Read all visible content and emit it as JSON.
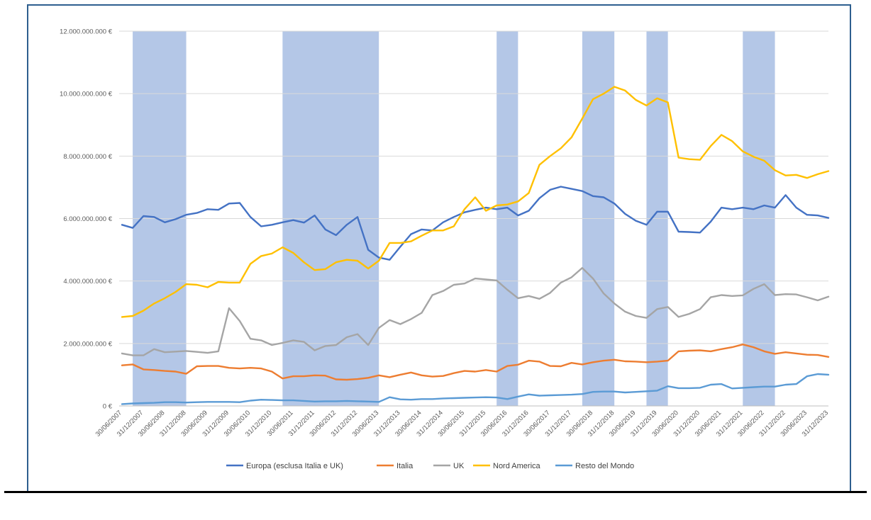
{
  "chart_data": {
    "type": "line",
    "title": "",
    "xlabel": "",
    "ylabel": "",
    "ylim": [
      0,
      12000000000
    ],
    "y_ticks": [
      "0 €",
      "2.000.000.000 €",
      "4.000.000.000 €",
      "6.000.000.000 €",
      "8.000.000.000 €",
      "10.000.000.000 €",
      "12.000.000.000 €"
    ],
    "x_ticks": [
      "30/06/2007",
      "31/12/2007",
      "30/06/2008",
      "31/12/2008",
      "30/06/2009",
      "31/12/2009",
      "30/06/2010",
      "31/12/2010",
      "30/06/2011",
      "31/12/2011",
      "30/06/2012",
      "31/12/2012",
      "30/06/2013",
      "31/12/2013",
      "30/06/2014",
      "31/12/2014",
      "30/06/2015",
      "31/12/2015",
      "30/06/2016",
      "31/12/2016",
      "30/06/2017",
      "31/12/2017",
      "30/06/2018",
      "31/12/2018",
      "30/06/2019",
      "31/12/2019",
      "30/06/2020",
      "31/12/2020",
      "30/06/2021",
      "31/12/2021",
      "30/06/2022",
      "31/12/2022",
      "30/06/2023",
      "31/12/2023"
    ],
    "grid": true,
    "legend_position": "bottom",
    "shaded_bands": [
      {
        "from": "30/09/2007",
        "to": "31/12/2008"
      },
      {
        "from": "31/03/2011",
        "to": "30/06/2013"
      },
      {
        "from": "31/03/2016",
        "to": "30/09/2016"
      },
      {
        "from": "31/03/2018",
        "to": "31/12/2018"
      },
      {
        "from": "30/09/2019",
        "to": "31/03/2020"
      },
      {
        "from": "31/12/2021",
        "to": "30/09/2022"
      }
    ],
    "band_color": "#b4c7e7",
    "series": [
      {
        "name": "Europa (esclusa Italia e UK)",
        "color": "#4472c4",
        "values": [
          5800000000.0,
          5700000000.0,
          6080000000.0,
          6050000000.0,
          5880000000.0,
          5980000000.0,
          6120000000.0,
          6180000000.0,
          6300000000.0,
          6280000000.0,
          6480000000.0,
          6500000000.0,
          6050000000.0,
          5750000000.0,
          5800000000.0,
          5880000000.0,
          5950000000.0,
          5870000000.0,
          6100000000.0,
          5650000000.0,
          5470000000.0,
          5800000000.0,
          6050000000.0,
          5000000000.0,
          4750000000.0,
          4680000000.0,
          5100000000.0,
          5500000000.0,
          5650000000.0,
          5620000000.0,
          5880000000.0,
          6050000000.0,
          6200000000.0,
          6280000000.0,
          6350000000.0,
          6300000000.0,
          6350000000.0,
          6100000000.0,
          6250000000.0,
          6650000000.0,
          6920000000.0,
          7020000000.0,
          6950000000.0,
          6880000000.0,
          6720000000.0,
          6680000000.0,
          6480000000.0,
          6150000000.0,
          5930000000.0,
          5800000000.0,
          6220000000.0,
          6220000000.0,
          5580000000.0,
          5570000000.0,
          5550000000.0,
          5900000000.0,
          6350000000.0,
          6300000000.0,
          6350000000.0,
          6300000000.0,
          6420000000.0,
          6350000000.0,
          6750000000.0,
          6350000000.0,
          6120000000.0,
          6100000000.0,
          6020000000.0
        ]
      },
      {
        "name": "Italia",
        "color": "#ed7d31",
        "values": [
          1300000000.0,
          1330000000.0,
          1170000000.0,
          1150000000.0,
          1120000000.0,
          1100000000.0,
          1030000000.0,
          1270000000.0,
          1280000000.0,
          1280000000.0,
          1220000000.0,
          1200000000.0,
          1220000000.0,
          1200000000.0,
          1100000000.0,
          880000000.0,
          950000000.0,
          950000000.0,
          980000000.0,
          970000000.0,
          850000000.0,
          840000000.0,
          860000000.0,
          900000000.0,
          980000000.0,
          920000000.0,
          1000000000.0,
          1070000000.0,
          980000000.0,
          940000000.0,
          960000000.0,
          1050000000.0,
          1120000000.0,
          1100000000.0,
          1150000000.0,
          1100000000.0,
          1280000000.0,
          1320000000.0,
          1450000000.0,
          1420000000.0,
          1280000000.0,
          1270000000.0,
          1380000000.0,
          1330000000.0,
          1400000000.0,
          1450000000.0,
          1480000000.0,
          1430000000.0,
          1420000000.0,
          1400000000.0,
          1420000000.0,
          1450000000.0,
          1750000000.0,
          1770000000.0,
          1780000000.0,
          1750000000.0,
          1820000000.0,
          1880000000.0,
          1970000000.0,
          1880000000.0,
          1750000000.0,
          1670000000.0,
          1720000000.0,
          1680000000.0,
          1640000000.0,
          1630000000.0,
          1570000000.0
        ]
      },
      {
        "name": "UK",
        "color": "#a5a5a5",
        "values": [
          1680000000.0,
          1620000000.0,
          1620000000.0,
          1820000000.0,
          1720000000.0,
          1740000000.0,
          1760000000.0,
          1730000000.0,
          1700000000.0,
          1750000000.0,
          3130000000.0,
          2720000000.0,
          2150000000.0,
          2100000000.0,
          1950000000.0,
          2020000000.0,
          2100000000.0,
          2050000000.0,
          1780000000.0,
          1920000000.0,
          1950000000.0,
          2200000000.0,
          2300000000.0,
          1950000000.0,
          2500000000.0,
          2750000000.0,
          2620000000.0,
          2780000000.0,
          2980000000.0,
          3550000000.0,
          3680000000.0,
          3880000000.0,
          3920000000.0,
          4080000000.0,
          4050000000.0,
          4020000000.0,
          3720000000.0,
          3450000000.0,
          3520000000.0,
          3430000000.0,
          3620000000.0,
          3950000000.0,
          4120000000.0,
          4420000000.0,
          4080000000.0,
          3600000000.0,
          3280000000.0,
          3020000000.0,
          2880000000.0,
          2820000000.0,
          3100000000.0,
          3170000000.0,
          2850000000.0,
          2950000000.0,
          3100000000.0,
          3480000000.0,
          3550000000.0,
          3520000000.0,
          3540000000.0,
          3750000000.0,
          3900000000.0,
          3550000000.0,
          3580000000.0,
          3570000000.0,
          3480000000.0,
          3380000000.0,
          3500000000.0
        ]
      },
      {
        "name": "Nord America",
        "color": "#ffc000",
        "values": [
          2850000000.0,
          2880000000.0,
          3050000000.0,
          3280000000.0,
          3450000000.0,
          3650000000.0,
          3900000000.0,
          3880000000.0,
          3800000000.0,
          3970000000.0,
          3950000000.0,
          3950000000.0,
          4550000000.0,
          4800000000.0,
          4880000000.0,
          5080000000.0,
          4900000000.0,
          4600000000.0,
          4350000000.0,
          4380000000.0,
          4600000000.0,
          4680000000.0,
          4650000000.0,
          4400000000.0,
          4650000000.0,
          5220000000.0,
          5220000000.0,
          5270000000.0,
          5450000000.0,
          5620000000.0,
          5620000000.0,
          5750000000.0,
          6300000000.0,
          6680000000.0,
          6250000000.0,
          6420000000.0,
          6450000000.0,
          6550000000.0,
          6820000000.0,
          7720000000.0,
          8000000000.0,
          8250000000.0,
          8600000000.0,
          9200000000.0,
          9820000000.0,
          10000000000.0,
          10220000000.0,
          10100000000.0,
          9800000000.0,
          9620000000.0,
          9850000000.0,
          9720000000.0,
          7950000000.0,
          7900000000.0,
          7880000000.0,
          8320000000.0,
          8680000000.0,
          8480000000.0,
          8150000000.0,
          7980000000.0,
          7850000000.0,
          7550000000.0,
          7380000000.0,
          7400000000.0,
          7300000000.0,
          7420000000.0,
          7520000000.0
        ]
      },
      {
        "name": "Resto del Mondo",
        "color": "#5b9bd5",
        "values": [
          60000000.0,
          80000000.0,
          90000000.0,
          100000000.0,
          120000000.0,
          120000000.0,
          110000000.0,
          120000000.0,
          130000000.0,
          130000000.0,
          130000000.0,
          120000000.0,
          170000000.0,
          200000000.0,
          190000000.0,
          180000000.0,
          180000000.0,
          160000000.0,
          140000000.0,
          150000000.0,
          150000000.0,
          160000000.0,
          150000000.0,
          140000000.0,
          130000000.0,
          280000000.0,
          210000000.0,
          200000000.0,
          220000000.0,
          220000000.0,
          240000000.0,
          250000000.0,
          260000000.0,
          270000000.0,
          280000000.0,
          270000000.0,
          220000000.0,
          300000000.0,
          370000000.0,
          330000000.0,
          340000000.0,
          350000000.0,
          360000000.0,
          380000000.0,
          450000000.0,
          460000000.0,
          460000000.0,
          430000000.0,
          450000000.0,
          470000000.0,
          490000000.0,
          630000000.0,
          570000000.0,
          570000000.0,
          580000000.0,
          680000000.0,
          700000000.0,
          560000000.0,
          580000000.0,
          600000000.0,
          620000000.0,
          620000000.0,
          680000000.0,
          700000000.0,
          950000000.0,
          1020000000.0,
          1000000000.0
        ]
      }
    ]
  }
}
